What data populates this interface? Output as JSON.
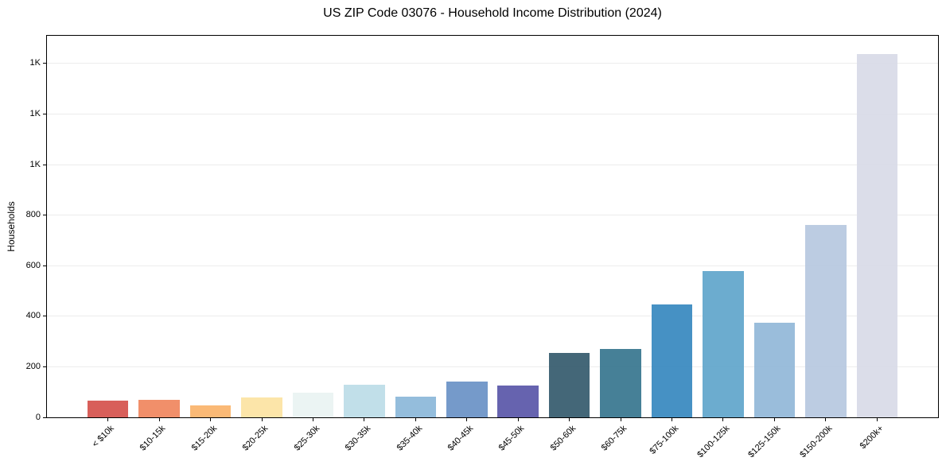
{
  "chart_data": {
    "type": "bar",
    "title": "US ZIP Code 03076 - Household Income Distribution (2024)",
    "xlabel": "",
    "ylabel": "Households",
    "categories": [
      "< $10k",
      "$10-15k",
      "$15-20k",
      "$20-25k",
      "$25-30k",
      "$30-35k",
      "$35-40k",
      "$40-45k",
      "$45-50k",
      "$50-60k",
      "$60-75k",
      "$75-100k",
      "$100-125k",
      "$125-150k",
      "$150-200k",
      "$200k+"
    ],
    "values": [
      66,
      70,
      48,
      78,
      98,
      130,
      82,
      143,
      126,
      255,
      270,
      447,
      580,
      375,
      760,
      1437
    ],
    "bar_colors": [
      "#d5534d",
      "#f0875f",
      "#fab46c",
      "#fce3a2",
      "#e9f3f2",
      "#bcdde7",
      "#8cb8d9",
      "#6b92c6",
      "#5a57a9",
      "#365b6e",
      "#38768f",
      "#3889bf",
      "#61a6cb",
      "#92b8d8",
      "#b7c8e0",
      "#d8dae7"
    ],
    "ylim": [
      0,
      1510
    ],
    "yticks": [
      {
        "value": 0,
        "label": "0"
      },
      {
        "value": 200,
        "label": "200"
      },
      {
        "value": 400,
        "label": "400"
      },
      {
        "value": 600,
        "label": "600"
      },
      {
        "value": 800,
        "label": "800"
      },
      {
        "value": 1000,
        "label": "1K"
      },
      {
        "value": 1200,
        "label": "1K"
      },
      {
        "value": 1400,
        "label": "1K"
      }
    ],
    "grid": "horizontal",
    "legend": "none",
    "styles": {
      "background": "#ffffff",
      "grid_color": "#ececec",
      "spine_color": "#000000",
      "text_color": "#000000"
    }
  }
}
